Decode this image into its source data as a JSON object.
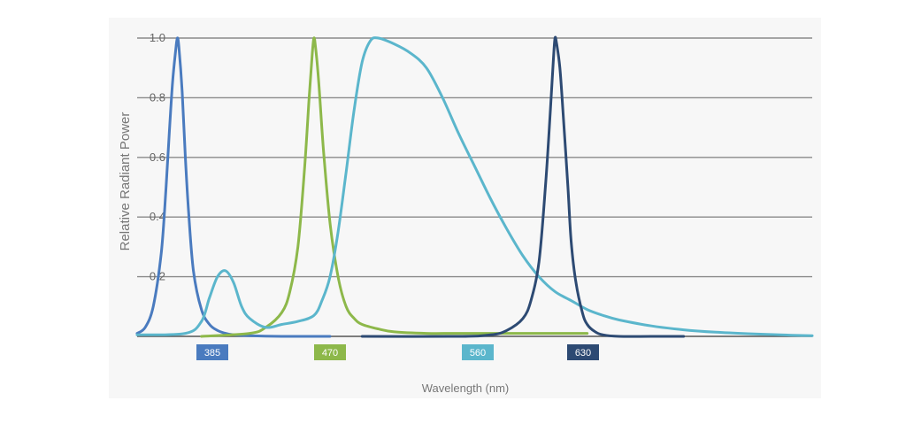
{
  "chart_data": {
    "type": "line",
    "title": "",
    "xlabel": "Wavelength (nm)",
    "ylabel": "Relative Radiant Power",
    "ylim": [
      0,
      1.0
    ],
    "yticks": [
      "0.2",
      "0.4",
      "0.6",
      "0.8",
      "1.0"
    ],
    "grid": true,
    "series": [
      {
        "name": "385",
        "color": "#4a7bbf",
        "x": [
          360,
          365,
          370,
          375,
          378,
          380,
          382,
          384,
          385,
          386,
          388,
          390,
          392,
          395,
          400,
          405,
          410,
          415,
          420,
          430,
          450,
          480
        ],
        "values": [
          0.01,
          0.03,
          0.1,
          0.28,
          0.5,
          0.68,
          0.85,
          0.96,
          1.0,
          0.97,
          0.82,
          0.6,
          0.42,
          0.22,
          0.09,
          0.04,
          0.02,
          0.01,
          0.005,
          0.002,
          0.0,
          0.0
        ]
      },
      {
        "name": "470",
        "color": "#8db84a",
        "x": [
          400,
          430,
          440,
          450,
          455,
          460,
          464,
          467,
          469,
          470,
          471,
          473,
          476,
          480,
          485,
          490,
          495,
          500,
          510,
          520,
          540,
          560,
          600,
          640
        ],
        "values": [
          0.0,
          0.01,
          0.03,
          0.08,
          0.15,
          0.3,
          0.55,
          0.8,
          0.95,
          1.0,
          0.97,
          0.85,
          0.62,
          0.38,
          0.2,
          0.1,
          0.06,
          0.04,
          0.025,
          0.015,
          0.01,
          0.01,
          0.01,
          0.01
        ]
      },
      {
        "name": "560",
        "color": "#5bb6cc",
        "x": [
          360,
          390,
          400,
          405,
          410,
          415,
          420,
          425,
          430,
          440,
          450,
          460,
          470,
          475,
          480,
          485,
          490,
          495,
          500,
          505,
          510,
          520,
          530,
          540,
          550,
          560,
          570,
          580,
          590,
          600,
          610,
          620,
          630,
          640,
          650,
          660,
          680,
          700,
          720,
          740,
          760,
          780
        ],
        "values": [
          0.005,
          0.01,
          0.05,
          0.13,
          0.2,
          0.22,
          0.18,
          0.1,
          0.06,
          0.03,
          0.04,
          0.05,
          0.07,
          0.12,
          0.2,
          0.35,
          0.55,
          0.76,
          0.92,
          0.99,
          1.0,
          0.98,
          0.95,
          0.9,
          0.8,
          0.68,
          0.57,
          0.46,
          0.36,
          0.27,
          0.2,
          0.15,
          0.12,
          0.09,
          0.07,
          0.055,
          0.035,
          0.022,
          0.014,
          0.009,
          0.005,
          0.002
        ]
      },
      {
        "name": "630",
        "color": "#2d4a73",
        "x": [
          500,
          560,
          580,
          590,
          600,
          605,
          610,
          614,
          617,
          619,
          620,
          621,
          623,
          625,
          628,
          630,
          633,
          637,
          640,
          645,
          650,
          660,
          680,
          700
        ],
        "values": [
          0.0,
          0.0,
          0.005,
          0.02,
          0.06,
          0.12,
          0.25,
          0.5,
          0.75,
          0.93,
          1.0,
          0.98,
          0.9,
          0.75,
          0.5,
          0.32,
          0.18,
          0.08,
          0.04,
          0.015,
          0.005,
          0.0,
          0.0,
          0.0
        ]
      }
    ],
    "legend": [
      {
        "label": "385",
        "color": "#4a7bbf"
      },
      {
        "label": "470",
        "color": "#8db84a"
      },
      {
        "label": "560",
        "color": "#5bb6cc"
      },
      {
        "label": "630",
        "color": "#2d4a73"
      }
    ]
  }
}
